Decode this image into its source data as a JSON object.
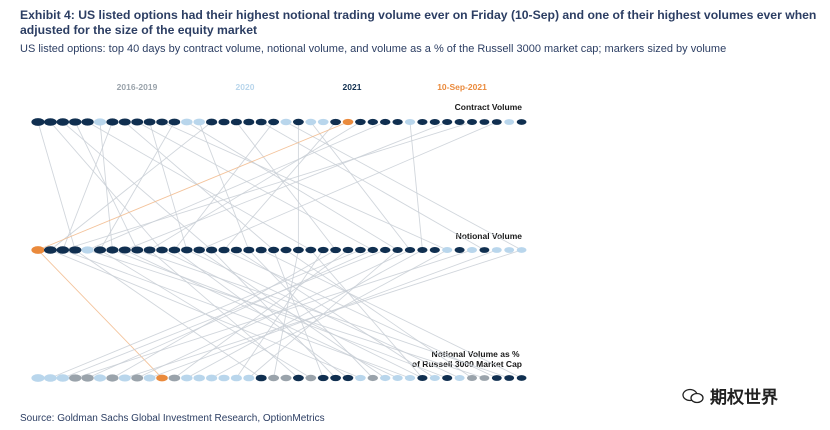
{
  "header": {
    "title": "Exhibit 4: US listed options had their highest notional trading volume ever on Friday (10-Sep) and one of their highest volumes ever when adjusted for the size of the equity market",
    "subtitle": "US listed options: top 40 days by contract volume, notional volume, and volume as a % of the Russell 3000 market cap; markers sized by volume"
  },
  "footer": {
    "source": "Source: Goldman Sachs Global Investment Research, OptionMetrics"
  },
  "watermark": {
    "text": "期权世界",
    "icon": "wechat-icon"
  },
  "colors": {
    "2016-2019": "#9aa3ab",
    "2020": "#b9d6ec",
    "2021": "#102f50",
    "10-Sep-2021": "#ea8a3c"
  },
  "chart_data": {
    "type": "scatter",
    "legend": [
      "2016-2019",
      "2020",
      "2021",
      "10-Sep-2021"
    ],
    "rows": [
      {
        "label": "Contract Volume",
        "groups": [
          "2021",
          "2021",
          "2021",
          "2021",
          "2021",
          "2020",
          "2021",
          "2021",
          "2021",
          "2021",
          "2021",
          "2021",
          "2020",
          "2020",
          "2021",
          "2021",
          "2021",
          "2021",
          "2021",
          "2021",
          "2020",
          "2021",
          "2020",
          "2020",
          "2021",
          "10-Sep-2021",
          "2021",
          "2021",
          "2021",
          "2021",
          "2020",
          "2021",
          "2021",
          "2021",
          "2021",
          "2021",
          "2021",
          "2021",
          "2020",
          "2021"
        ],
        "sizes": [
          1.0,
          0.97,
          0.95,
          0.94,
          0.93,
          0.92,
          0.92,
          0.91,
          0.9,
          0.89,
          0.88,
          0.88,
          0.87,
          0.87,
          0.86,
          0.85,
          0.85,
          0.84,
          0.84,
          0.83,
          0.83,
          0.82,
          0.82,
          0.81,
          0.81,
          0.8,
          0.8,
          0.79,
          0.79,
          0.78,
          0.78,
          0.77,
          0.77,
          0.77,
          0.76,
          0.76,
          0.75,
          0.75,
          0.75,
          0.74
        ]
      },
      {
        "label": "Notional Volume",
        "groups": [
          "10-Sep-2021",
          "2021",
          "2021",
          "2021",
          "2020",
          "2021",
          "2021",
          "2021",
          "2021",
          "2021",
          "2021",
          "2021",
          "2021",
          "2021",
          "2021",
          "2021",
          "2021",
          "2021",
          "2021",
          "2021",
          "2021",
          "2021",
          "2021",
          "2021",
          "2021",
          "2021",
          "2021",
          "2021",
          "2021",
          "2021",
          "2021",
          "2021",
          "2021",
          "2020",
          "2021",
          "2020",
          "2021",
          "2020",
          "2020",
          "2020"
        ],
        "sizes": [
          1.0,
          0.97,
          0.95,
          0.94,
          0.93,
          0.92,
          0.92,
          0.91,
          0.9,
          0.89,
          0.88,
          0.88,
          0.87,
          0.87,
          0.86,
          0.85,
          0.85,
          0.84,
          0.84,
          0.83,
          0.83,
          0.82,
          0.82,
          0.81,
          0.81,
          0.8,
          0.8,
          0.79,
          0.79,
          0.78,
          0.78,
          0.77,
          0.77,
          0.77,
          0.76,
          0.76,
          0.75,
          0.75,
          0.75,
          0.74
        ]
      },
      {
        "label": "Notional Volume as %\nof Russell 3000 Market Cap",
        "groups": [
          "2020",
          "2020",
          "2020",
          "2016-2019",
          "2016-2019",
          "2020",
          "2016-2019",
          "2020",
          "2016-2019",
          "2020",
          "10-Sep-2021",
          "2016-2019",
          "2020",
          "2020",
          "2020",
          "2020",
          "2020",
          "2020",
          "2021",
          "2016-2019",
          "2016-2019",
          "2021",
          "2016-2019",
          "2021",
          "2021",
          "2021",
          "2020",
          "2016-2019",
          "2020",
          "2020",
          "2020",
          "2021",
          "2020",
          "2021",
          "2020",
          "2016-2019",
          "2016-2019",
          "2021",
          "2021",
          "2021"
        ],
        "sizes": [
          1.0,
          0.97,
          0.95,
          0.94,
          0.93,
          0.92,
          0.92,
          0.91,
          0.9,
          0.89,
          0.88,
          0.88,
          0.87,
          0.87,
          0.86,
          0.85,
          0.85,
          0.84,
          0.84,
          0.83,
          0.83,
          0.82,
          0.82,
          0.81,
          0.81,
          0.8,
          0.8,
          0.79,
          0.79,
          0.78,
          0.78,
          0.77,
          0.77,
          0.77,
          0.76,
          0.76,
          0.75,
          0.75,
          0.75,
          0.74
        ]
      }
    ],
    "links_contract_to_notional": [
      [
        0,
        3
      ],
      [
        1,
        10
      ],
      [
        2,
        14
      ],
      [
        3,
        8
      ],
      [
        4,
        22
      ],
      [
        5,
        6
      ],
      [
        6,
        2
      ],
      [
        7,
        19
      ],
      [
        8,
        27
      ],
      [
        9,
        12
      ],
      [
        10,
        33
      ],
      [
        11,
        5
      ],
      [
        12,
        29
      ],
      [
        13,
        17
      ],
      [
        14,
        1
      ],
      [
        16,
        24
      ],
      [
        18,
        36
      ],
      [
        19,
        11
      ],
      [
        20,
        39
      ],
      [
        21,
        21
      ],
      [
        22,
        30
      ],
      [
        24,
        15
      ],
      [
        25,
        0
      ],
      [
        26,
        9
      ],
      [
        28,
        4
      ],
      [
        30,
        31
      ],
      [
        33,
        7
      ],
      [
        35,
        2
      ],
      [
        37,
        13
      ]
    ],
    "links_notional_to_pct": [
      [
        0,
        10
      ],
      [
        1,
        26
      ],
      [
        2,
        30
      ],
      [
        3,
        18
      ],
      [
        4,
        36
      ],
      [
        5,
        22
      ],
      [
        6,
        33
      ],
      [
        7,
        29
      ],
      [
        8,
        38
      ],
      [
        9,
        21
      ],
      [
        10,
        31
      ],
      [
        11,
        25
      ],
      [
        12,
        34
      ],
      [
        13,
        28
      ],
      [
        14,
        24
      ],
      [
        15,
        37
      ],
      [
        16,
        32
      ],
      [
        17,
        27
      ],
      [
        18,
        39
      ],
      [
        19,
        23
      ],
      [
        20,
        35
      ],
      [
        21,
        19
      ],
      [
        22,
        31
      ],
      [
        23,
        16
      ],
      [
        24,
        6
      ],
      [
        25,
        11
      ],
      [
        26,
        1
      ],
      [
        27,
        4
      ],
      [
        28,
        2
      ],
      [
        29,
        17
      ],
      [
        30,
        8
      ],
      [
        31,
        12
      ],
      [
        33,
        14
      ],
      [
        35,
        3
      ],
      [
        37,
        9
      ],
      [
        39,
        7
      ]
    ]
  }
}
